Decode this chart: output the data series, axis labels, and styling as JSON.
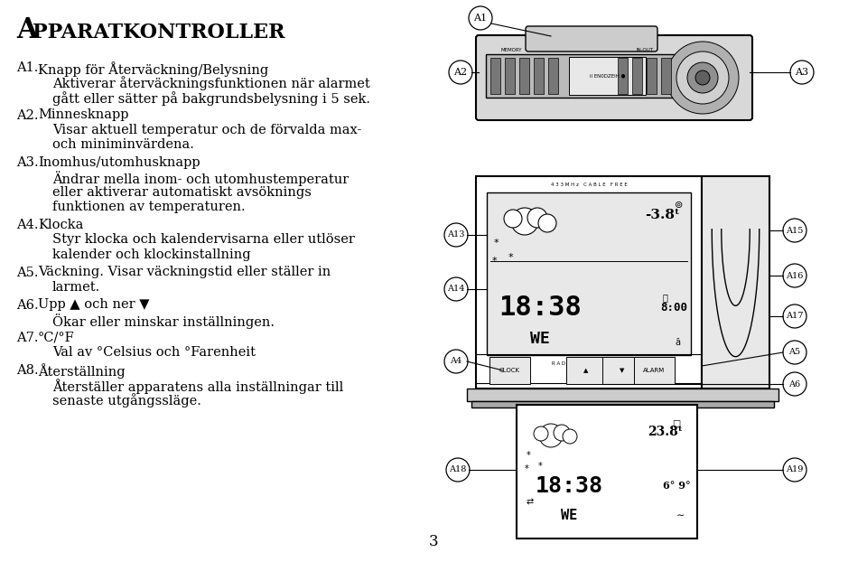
{
  "title_A": "A",
  "title_rest": "PPARATKONTROLLER",
  "page_number": "3",
  "background_color": "#ffffff",
  "text_color": "#000000",
  "left_items": [
    {
      "label": "A1.",
      "lines": [
        {
          "text": "Knapp för Återväckning/Belysning",
          "indent": 1
        },
        {
          "text": "Aktiverar återväckningsfunktionen när alarmet",
          "indent": 2
        },
        {
          "text": "gått eller sätter på bakgrundsbelysning i 5 sek.",
          "indent": 2
        }
      ]
    },
    {
      "label": "A2.",
      "lines": [
        {
          "text": "Minnesknapp",
          "indent": 1
        },
        {
          "text": "Visar aktuell temperatur och de förvalda max-",
          "indent": 2
        },
        {
          "text": "och miniminvärdena.",
          "indent": 2
        }
      ]
    },
    {
      "label": "A3.",
      "lines": [
        {
          "text": "Inomhus/utomhusknapp",
          "indent": 1
        },
        {
          "text": "Ändrar mella inom- och utomhustemperatur",
          "indent": 2
        },
        {
          "text": "eller aktiverar automatiskt avsöknings",
          "indent": 2
        },
        {
          "text": "funktionen av temperaturen.",
          "indent": 2
        }
      ]
    },
    {
      "label": "A4.",
      "lines": [
        {
          "text": "Klocka",
          "indent": 1
        },
        {
          "text": "Styr klocka och kalendervisarna eller utlöser",
          "indent": 2
        },
        {
          "text": "kalender och klockinstallning",
          "indent": 2
        }
      ]
    },
    {
      "label": "A5.",
      "lines": [
        {
          "text": "Väckning. Visar väckningstid eller ställer in",
          "indent": 1
        },
        {
          "text": "larmet.",
          "indent": 2
        }
      ]
    },
    {
      "label": "A6.",
      "lines": [
        {
          "text": "Upp ▲ och ner ▼",
          "indent": 1
        },
        {
          "text": "Ökar eller minskar inställningen.",
          "indent": 2
        }
      ]
    },
    {
      "label": "A7.",
      "lines": [
        {
          "text": "°C/°F",
          "indent": 1
        },
        {
          "text": "Val av °Celsius och °Farenheit",
          "indent": 2
        }
      ]
    },
    {
      "label": "A8.",
      "lines": [
        {
          "text": "Återställning",
          "indent": 1
        },
        {
          "text": "Återställer apparatens alla inställningar till",
          "indent": 2
        },
        {
          "text": "senaste utgångssläge.",
          "indent": 2
        }
      ]
    }
  ]
}
